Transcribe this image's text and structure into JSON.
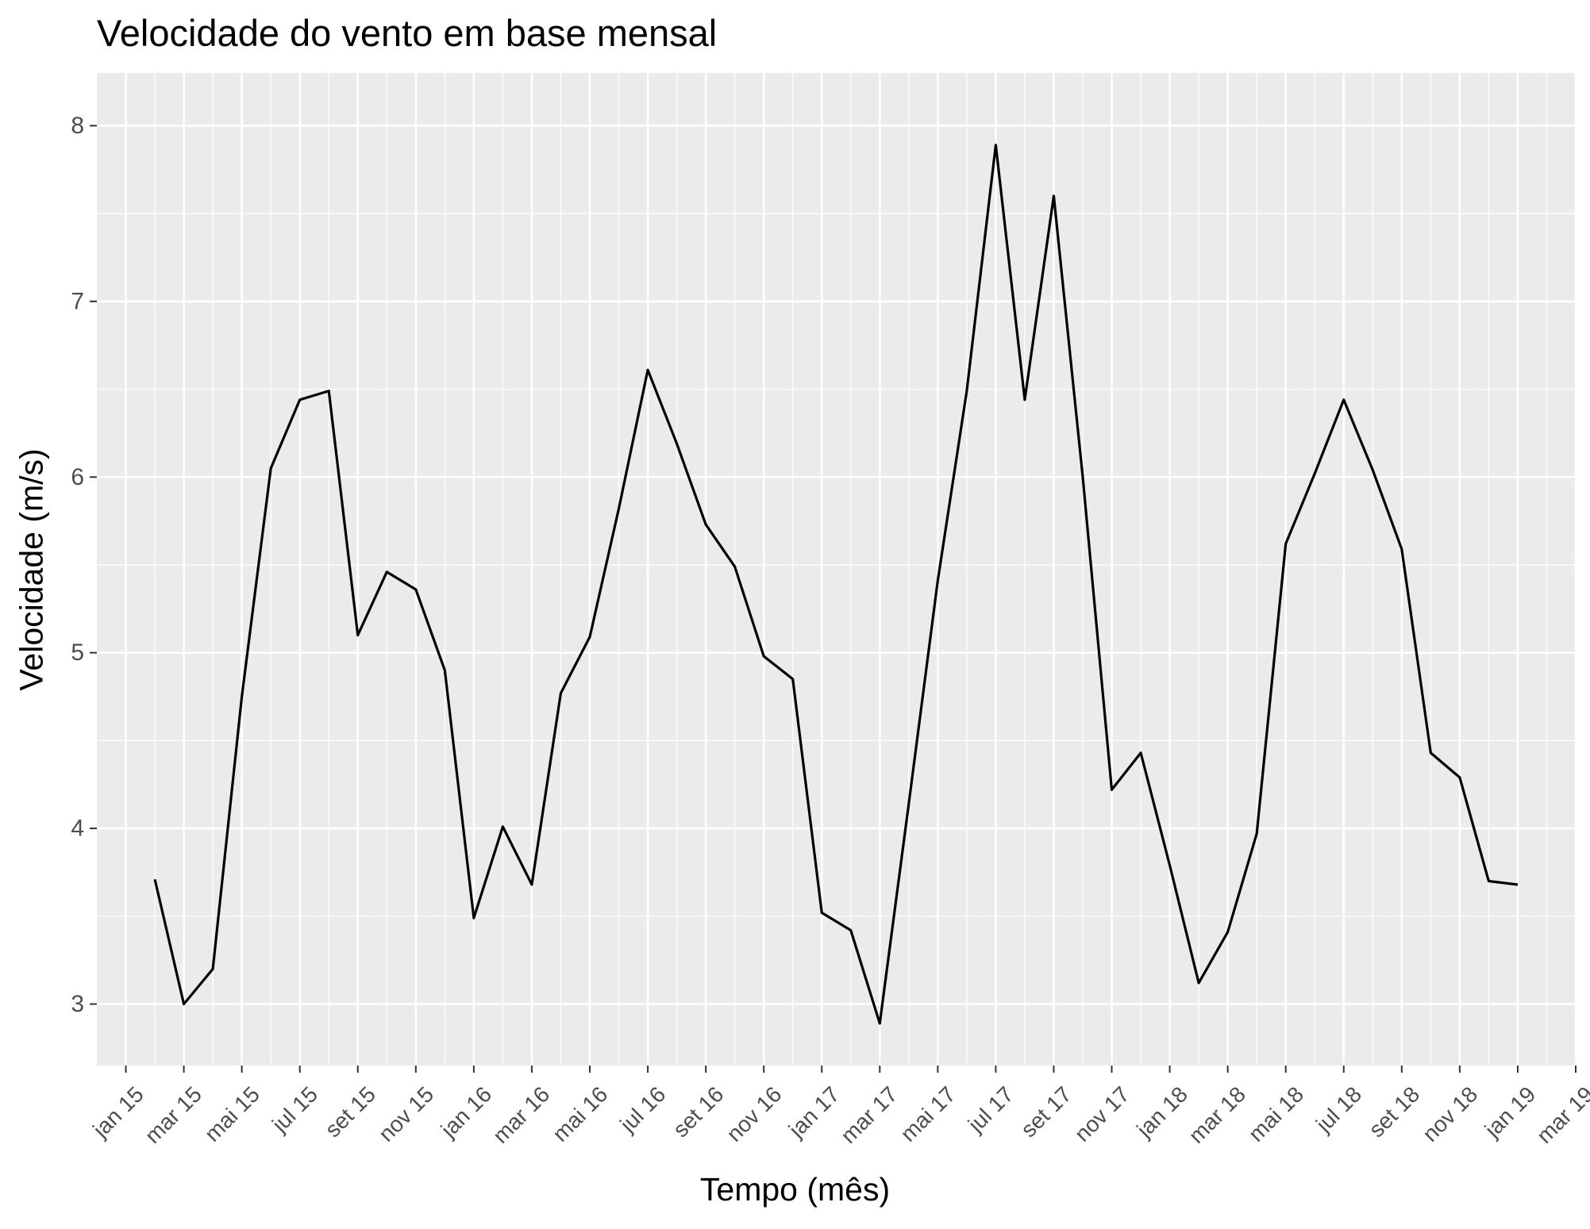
{
  "chart_data": {
    "type": "line",
    "title": "Velocidade do vento em base mensal",
    "xlabel": "Tempo (mês)",
    "ylabel": "Velocidade (m/s)",
    "x_ticks": [
      "jan 15",
      "mar 15",
      "mai 15",
      "jul 15",
      "set 15",
      "nov 15",
      "jan 16",
      "mar 16",
      "mai 16",
      "jul 16",
      "set 16",
      "nov 16",
      "jan 17",
      "mar 17",
      "mai 17",
      "jul 17",
      "set 17",
      "nov 17",
      "jan 18",
      "mar 18",
      "mai 18",
      "jul 18",
      "set 18",
      "nov 18",
      "jan 19",
      "mar 19"
    ],
    "y_ticks": [
      3,
      4,
      5,
      6,
      7,
      8
    ],
    "ylim": [
      2.65,
      8.3
    ],
    "xlim": [
      "2014-12",
      "2019-03"
    ],
    "grid": true,
    "series": [
      {
        "color": "#000000",
        "x": [
          "2015-02",
          "2015-03",
          "2015-04",
          "2015-05",
          "2015-06",
          "2015-07",
          "2015-08",
          "2015-09",
          "2015-10",
          "2015-11",
          "2015-12",
          "2016-01",
          "2016-02",
          "2016-03",
          "2016-04",
          "2016-05",
          "2016-06",
          "2016-07",
          "2016-08",
          "2016-09",
          "2016-10",
          "2016-11",
          "2016-12",
          "2017-01",
          "2017-02",
          "2017-03",
          "2017-04",
          "2017-05",
          "2017-06",
          "2017-07",
          "2017-08",
          "2017-09",
          "2017-10",
          "2017-11",
          "2017-12",
          "2018-01",
          "2018-02",
          "2018-03",
          "2018-04",
          "2018-05",
          "2018-06",
          "2018-07",
          "2018-08",
          "2018-09",
          "2018-10",
          "2018-11",
          "2018-12",
          "2019-01"
        ],
        "values": [
          3.71,
          3.0,
          3.2,
          4.75,
          6.05,
          6.44,
          6.49,
          5.1,
          5.46,
          5.36,
          4.9,
          3.49,
          4.01,
          3.68,
          4.77,
          5.09,
          5.82,
          6.61,
          6.19,
          5.73,
          5.49,
          4.98,
          4.85,
          3.52,
          3.42,
          2.89,
          4.14,
          5.41,
          6.49,
          7.89,
          6.44,
          7.6,
          6.0,
          4.22,
          4.43,
          3.79,
          3.12,
          3.41,
          3.97,
          5.62,
          6.02,
          6.44,
          6.04,
          5.59,
          4.43,
          4.29,
          3.7,
          3.68
        ]
      }
    ]
  }
}
